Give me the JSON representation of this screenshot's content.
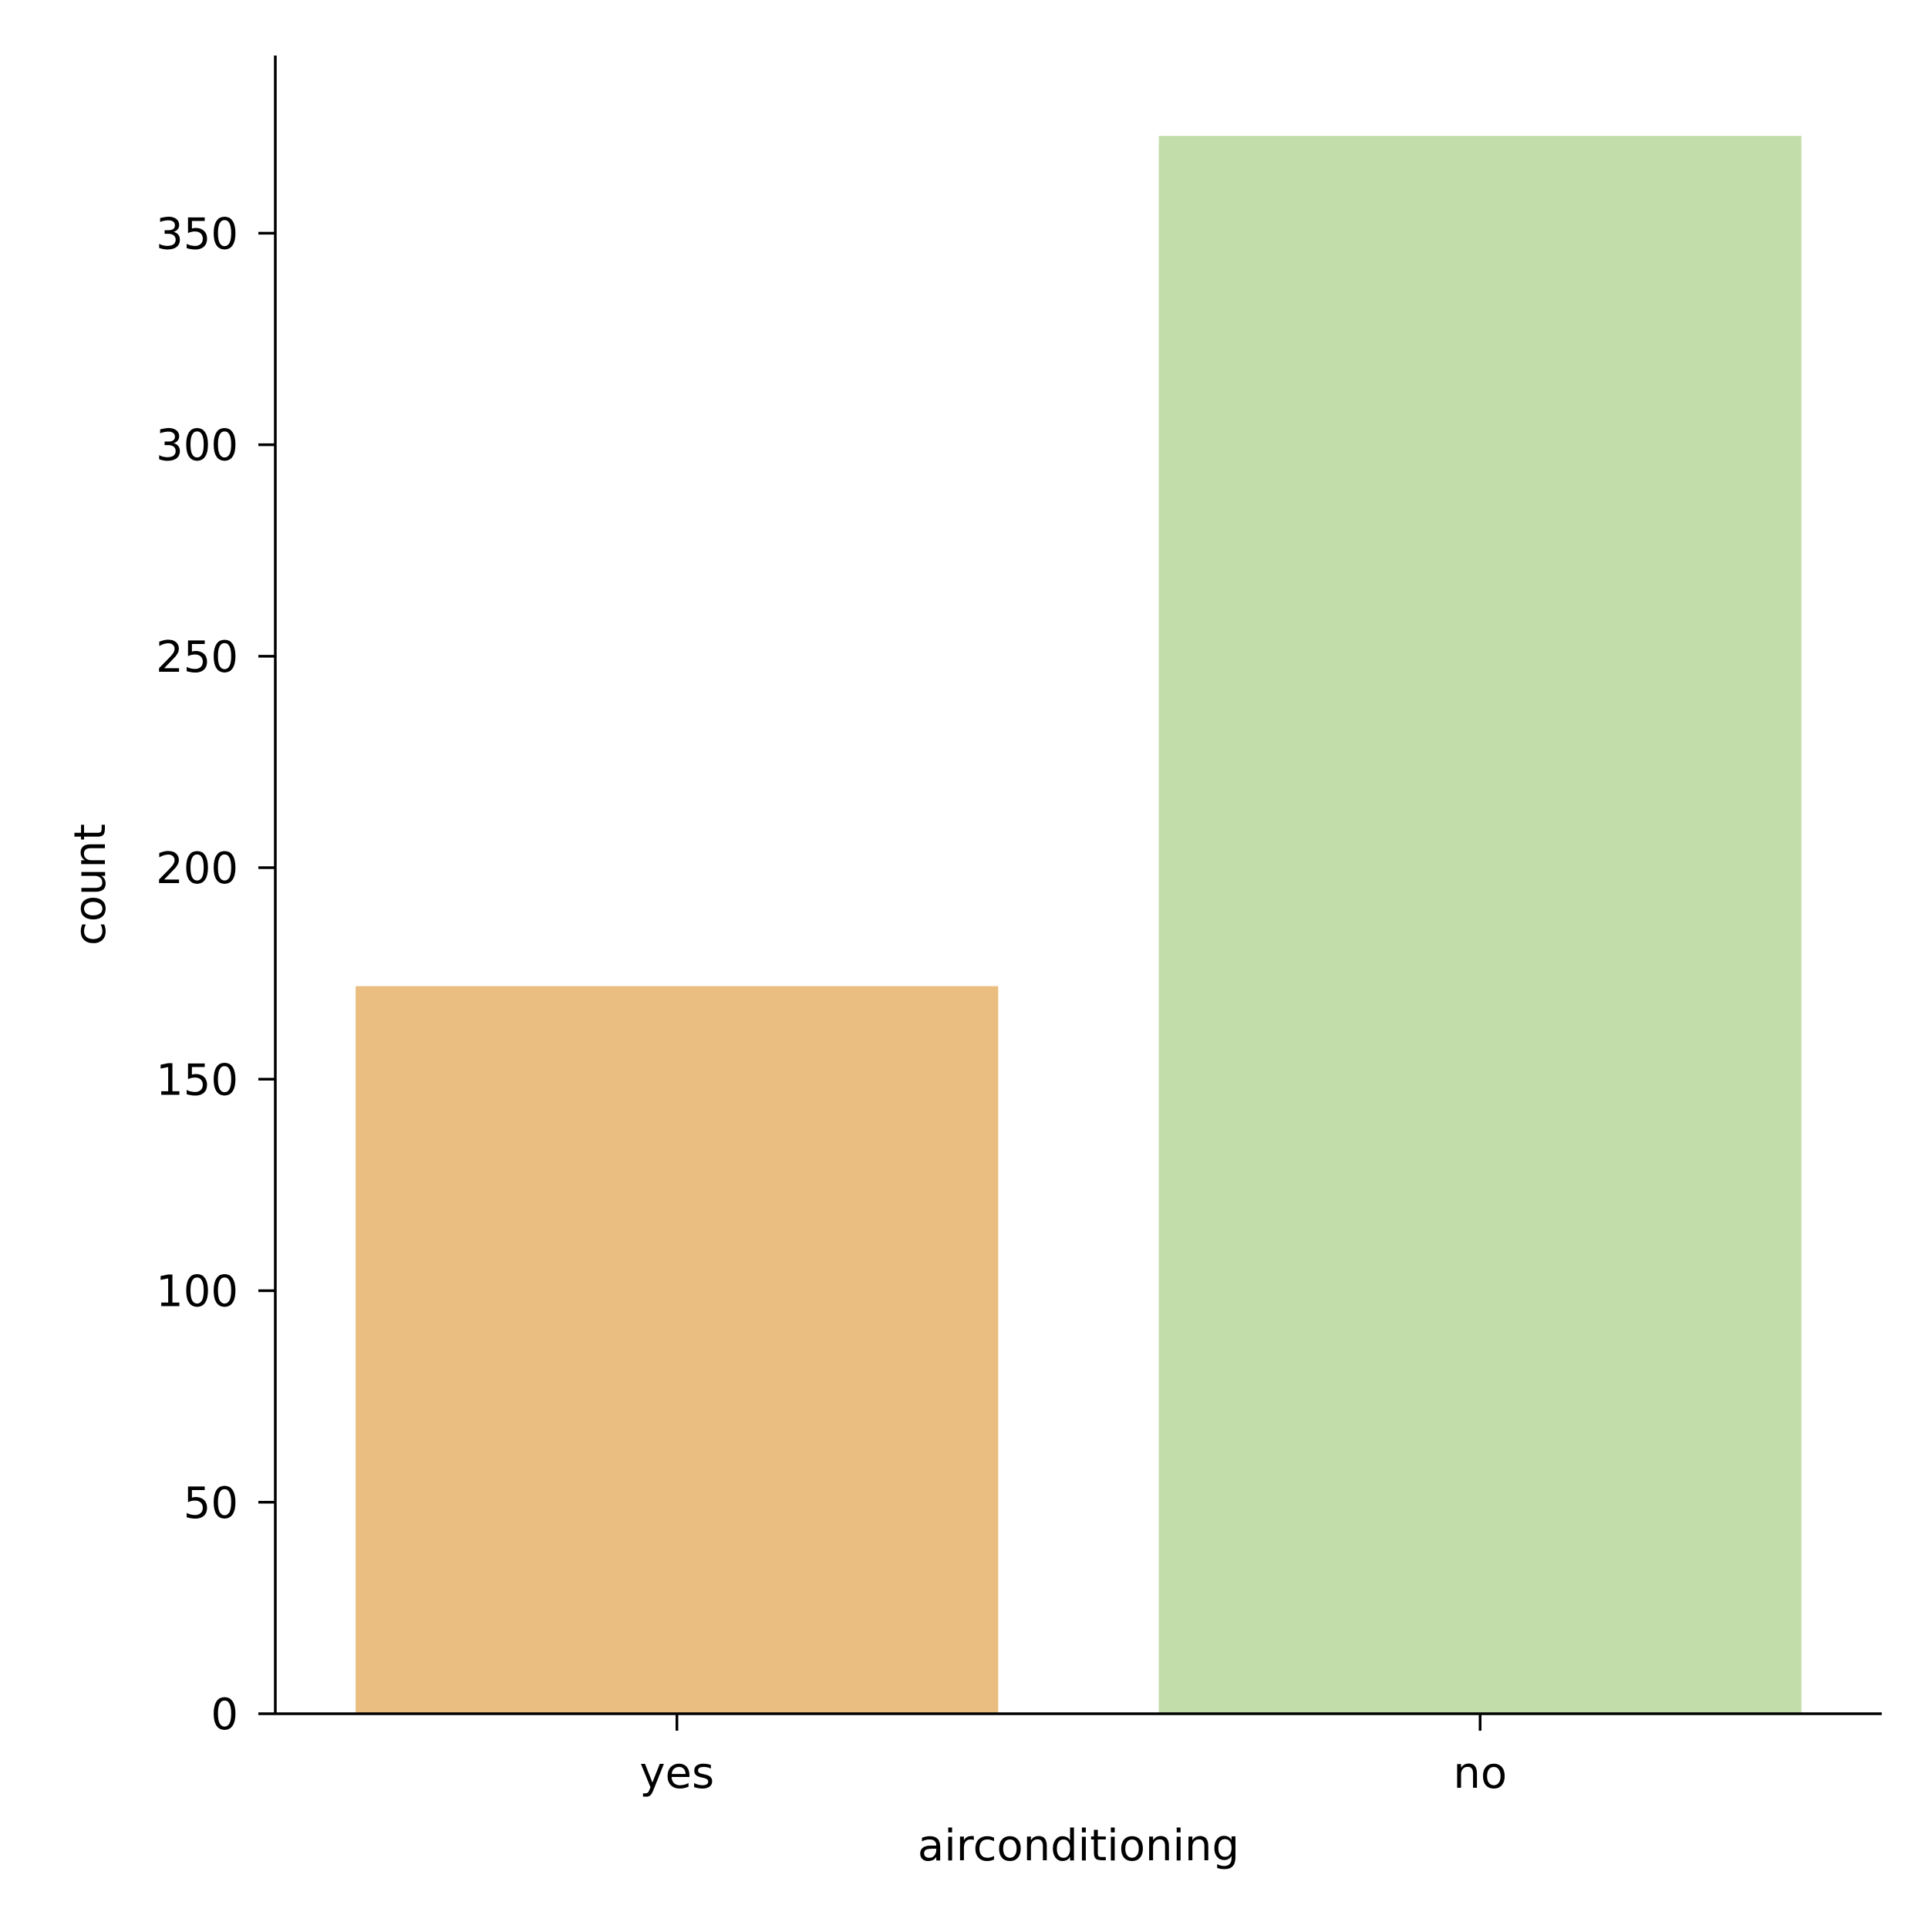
{
  "chart_data": {
    "type": "bar",
    "title": "",
    "xlabel": "airconditioning",
    "ylabel": "count",
    "categories": [
      "yes",
      "no"
    ],
    "values": [
      172,
      373
    ],
    "colors": [
      "#eabd81",
      "#c2dda9"
    ],
    "ylim": [
      0,
      392
    ],
    "yticks": [
      0,
      50,
      100,
      150,
      200,
      250,
      300,
      350
    ],
    "grid": false,
    "legend": "none"
  }
}
